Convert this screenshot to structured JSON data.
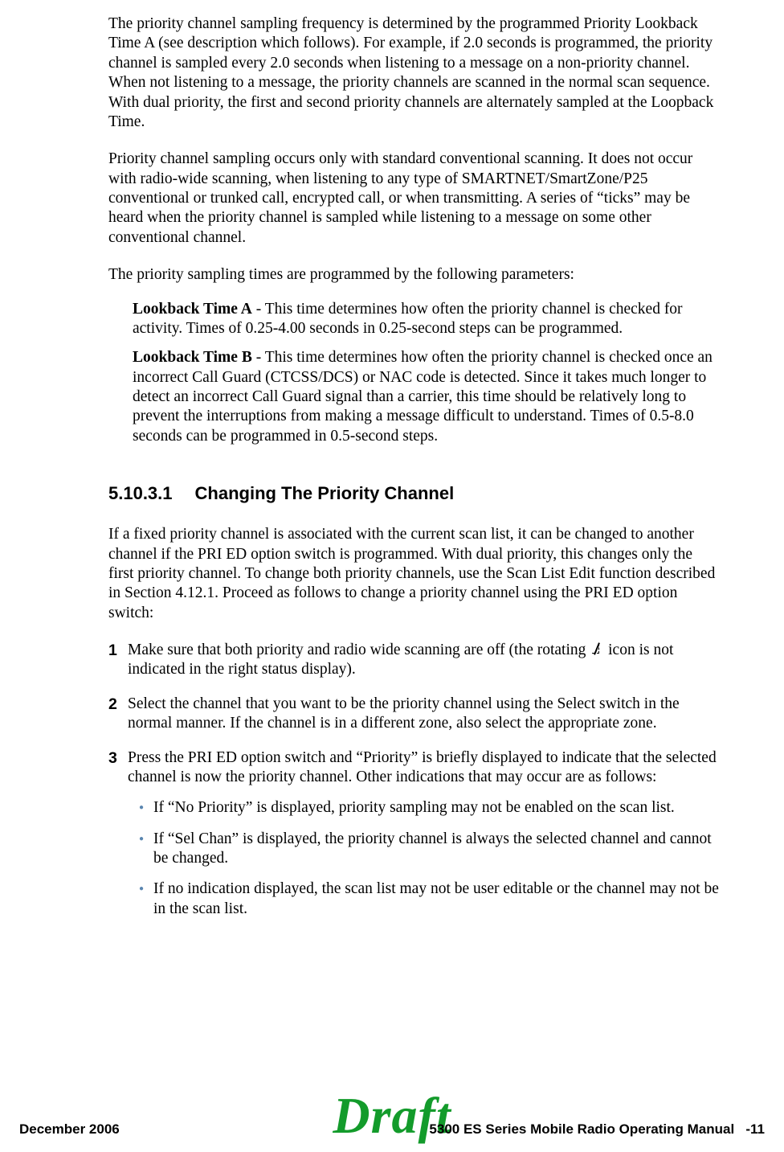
{
  "body": {
    "p1": "The priority channel sampling frequency is determined by the programmed Priority Lookback Time A (see description which follows). For example, if 2.0 seconds is programmed, the priority channel is sampled every 2.0 seconds when listening to a message on a non-priority channel. When not listening to a message, the priority channels are scanned in the normal scan sequence. With dual priority, the first and second priority channels are alternately sampled at the Loopback Time.",
    "p2": "Priority channel sampling occurs only with standard conventional scanning. It does not occur with radio-wide scanning, when listening to any type of SMARTNET/SmartZone/P25 conventional or trunked call, encrypted call, or when transmitting. A series of “ticks” may be heard when the priority channel is sampled while listening to a message on some other conventional channel.",
    "p3": "The priority sampling times are programmed by the following parameters:",
    "defA_label": "Lookback Time A",
    "defA_text": " - This time determines how often the priority channel is checked for activity. Times of 0.25-4.00 seconds in 0.25-second steps can be programmed.",
    "defB_label": "Lookback Time B",
    "defB_text": " - This time determines how often the priority channel is checked once an incorrect Call Guard (CTCSS/DCS) or NAC code is detected. Since it takes much longer to detect an incorrect Call Guard signal than a carrier, this time should be relatively long to prevent the interruptions from making a message difficult to understand. Times of 0.5-8.0 seconds can be programmed in 0.5-second steps."
  },
  "section": {
    "num": "5.10.3.1",
    "title": "Changing The Priority Channel",
    "intro": "If a fixed priority channel is associated with the current scan list, it can be changed to another channel if the PRI ED option switch is programmed. With dual priority, this changes only the first priority channel. To change both priority channels, use the Scan List Edit function described in Section 4.12.1. Proceed as follows to change a priority channel using the PRI ED option switch:",
    "steps": {
      "s1n": "1",
      "s1a": "Make sure that both priority and radio wide scanning are off (the rotating ",
      "s1b": " icon is not indicated in the right status display).",
      "s2n": "2",
      "s2": "Select the channel that you want to be the priority channel using the Select switch in the normal manner. If the channel is in a different zone, also select the appropriate zone.",
      "s3n": "3",
      "s3": "Press the PRI ED option switch and “Priority” is briefly displayed to indicate that the selected channel is now the priority channel. Other indications that may occur are as follows:"
    },
    "bullets": {
      "b1": "If “No Priority” is displayed, priority sampling may not be enabled on the scan list.",
      "b2": "If “Sel Chan” is displayed, the priority channel is always the selected channel and cannot be changed.",
      "b3": "If no indication displayed, the scan list may not be user editable or the channel may not be in the scan list."
    }
  },
  "footer": {
    "left": "December 2006",
    "draft": "Draft",
    "right_title": "5300 ES Series Mobile Radio Operating Manual",
    "right_page": "-11"
  }
}
